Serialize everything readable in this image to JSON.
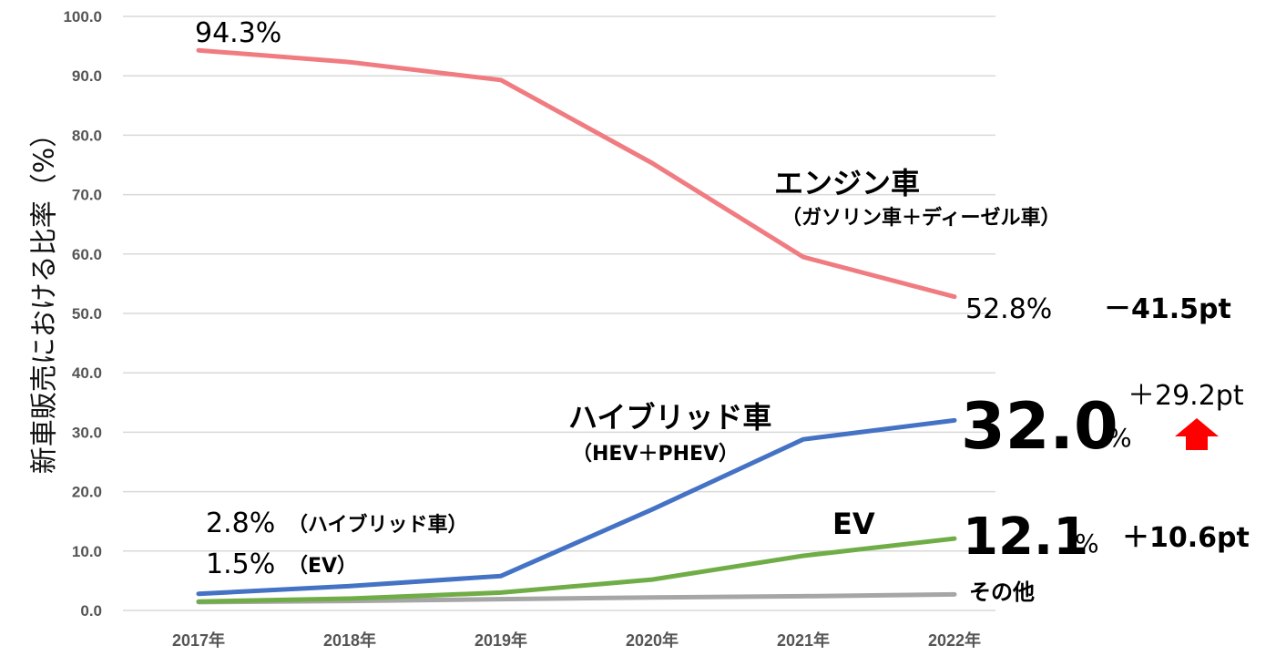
{
  "chart_data": {
    "type": "line",
    "ylabel": "新車販売における比率（%）",
    "ylim": [
      0,
      100
    ],
    "y_ticks": [
      "0.0",
      "10.0",
      "20.0",
      "30.0",
      "40.0",
      "50.0",
      "60.0",
      "70.0",
      "80.0",
      "90.0",
      "100.0"
    ],
    "categories": [
      "2017年",
      "2018年",
      "2019年",
      "2020年",
      "2021年",
      "2022年"
    ],
    "grid": true,
    "series": [
      {
        "name": "エンジン車",
        "color": "#F07C82",
        "values": [
          94.3,
          92.3,
          89.3,
          75.3,
          59.5,
          52.8
        ]
      },
      {
        "name": "ハイブリッド車",
        "color": "#4472C4",
        "values": [
          2.8,
          4.1,
          5.8,
          17.0,
          28.8,
          32.0
        ]
      },
      {
        "name": "EV",
        "color": "#70AD47",
        "values": [
          1.5,
          2.0,
          3.0,
          5.2,
          9.2,
          12.1
        ]
      },
      {
        "name": "その他",
        "color": "#A6A6A6",
        "values": [
          1.4,
          1.6,
          1.9,
          2.2,
          2.4,
          2.7
        ]
      }
    ],
    "annotations": {
      "engine_start": "94.3%",
      "engine_name": "エンジン車",
      "engine_sub": "（ガソリン車＋ディーゼル車）",
      "engine_end": "52.8%",
      "engine_change": "－41.5pt",
      "hybrid_name": "ハイブリッド車",
      "hybrid_sub": "（HEV＋PHEV）",
      "hybrid_end_value": "32.0",
      "hybrid_end_unit": "%",
      "hybrid_change": "＋29.2pt",
      "hybrid_start": "2.8%",
      "hybrid_start_note": "（ハイブリッド車）",
      "ev_start": "1.5%",
      "ev_start_note": "（EV）",
      "ev_name": "EV",
      "ev_end_value": "12.1",
      "ev_end_unit": "%",
      "ev_change": "＋10.6pt",
      "other_name": "その他",
      "highlight_color": "#FF0000"
    }
  }
}
